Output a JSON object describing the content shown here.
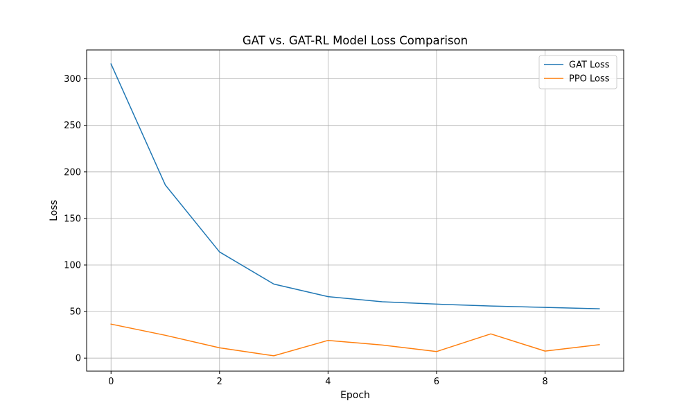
{
  "chart_data": {
    "type": "line",
    "title": "GAT vs. GAT-RL Model Loss Comparison",
    "xlabel": "Epoch",
    "ylabel": "Loss",
    "xlim": [
      -0.45,
      9.45
    ],
    "ylim": [
      -14,
      331
    ],
    "xticks": [
      0,
      2,
      4,
      6,
      8
    ],
    "yticks": [
      0,
      50,
      100,
      150,
      200,
      250,
      300
    ],
    "grid": true,
    "legend_position": "upper right",
    "x": [
      0,
      1,
      2,
      3,
      4,
      5,
      6,
      7,
      8,
      9
    ],
    "series": [
      {
        "name": "GAT Loss",
        "color": "#1f77b4",
        "values": [
          316,
          186,
          114,
          79.5,
          66,
          60.5,
          58,
          56,
          54.5,
          53
        ]
      },
      {
        "name": "PPO Loss",
        "color": "#ff7f0e",
        "values": [
          36.5,
          24.5,
          11,
          2.5,
          19,
          14,
          7,
          26,
          7.5,
          14.5
        ]
      }
    ]
  }
}
